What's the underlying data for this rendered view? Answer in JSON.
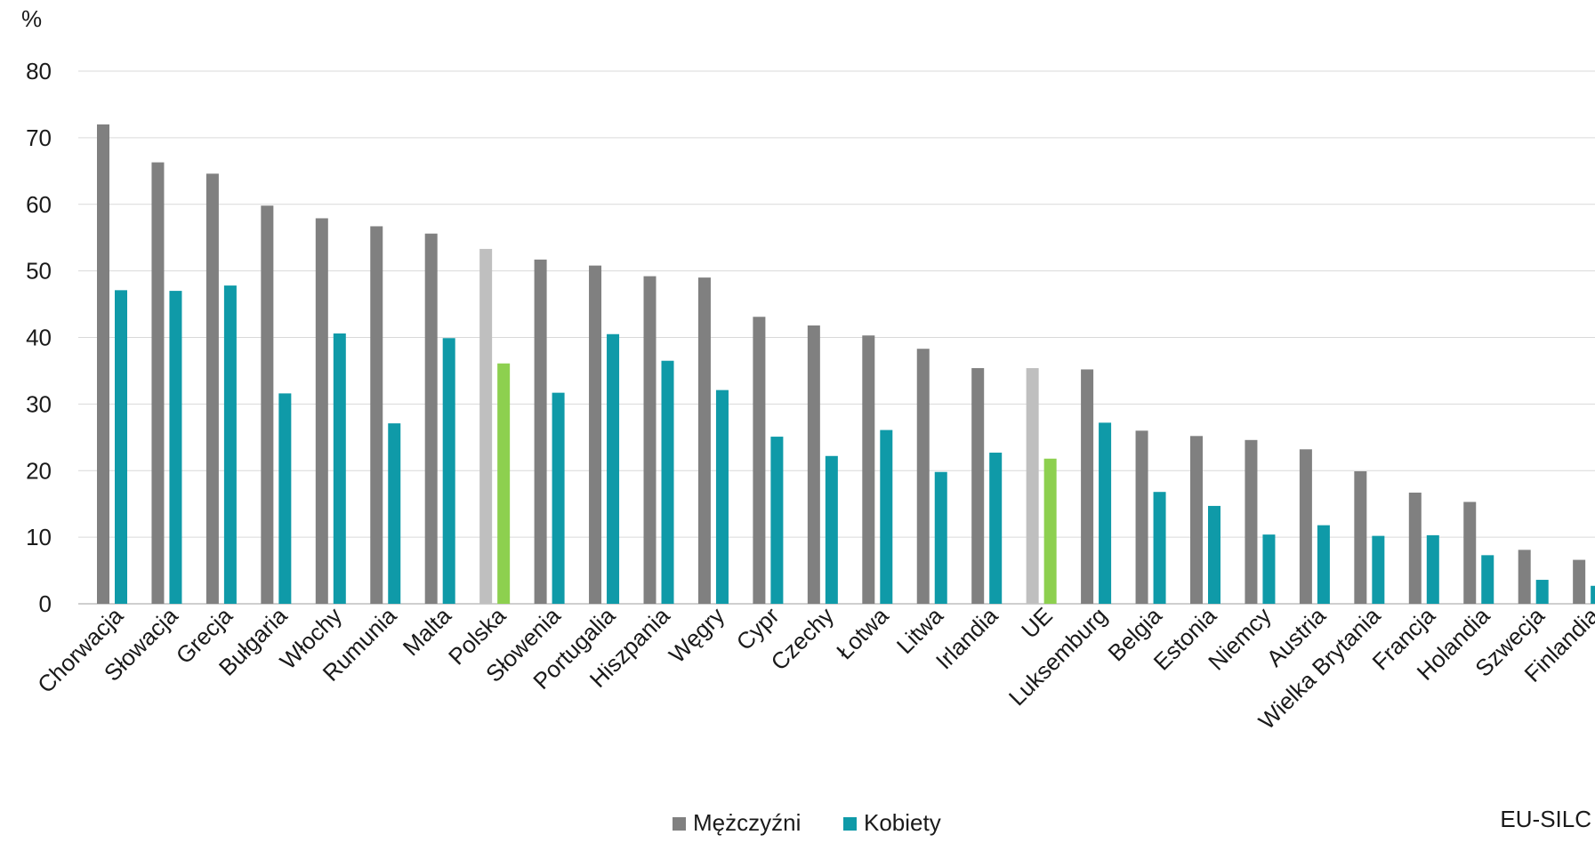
{
  "chart_data": {
    "type": "bar",
    "ylabel": "%",
    "ylim": [
      0,
      80
    ],
    "yticks": [
      0,
      10,
      20,
      30,
      40,
      50,
      60,
      70,
      80
    ],
    "grid": true,
    "legend_position": "bottom",
    "categories": [
      "Chorwacja",
      "Słowacja",
      "Grecja",
      "Bułgaria",
      "Włochy",
      "Rumunia",
      "Malta",
      "Polska",
      "Słowenia",
      "Portugalia",
      "Hiszpania",
      "Węgry",
      "Cypr",
      "Czechy",
      "Łotwa",
      "Litwa",
      "Irlandia",
      "UE",
      "Luksemburg",
      "Belgia",
      "Estonia",
      "Niemcy",
      "Austria",
      "Wielka Brytania",
      "Francja",
      "Holandia",
      "Szwecja",
      "Finlandia"
    ],
    "series": [
      {
        "name": "Mężczyźni",
        "color": "#808080",
        "highlight_color": "#bfbfbf",
        "values": [
          72.0,
          66.3,
          64.6,
          59.8,
          57.9,
          56.7,
          55.6,
          53.3,
          51.7,
          50.8,
          49.2,
          49.0,
          43.1,
          41.8,
          40.3,
          38.3,
          35.4,
          35.4,
          35.2,
          26.0,
          25.2,
          24.6,
          23.2,
          19.9,
          16.7,
          15.3,
          8.1,
          6.6
        ]
      },
      {
        "name": "Kobiety",
        "color": "#0f9aa8",
        "highlight_color": "#8dd04f",
        "values": [
          47.1,
          47.0,
          47.8,
          31.6,
          40.6,
          27.1,
          39.9,
          36.1,
          31.7,
          40.5,
          36.5,
          32.1,
          25.1,
          22.2,
          26.1,
          19.8,
          22.7,
          21.8,
          27.2,
          16.8,
          14.7,
          10.4,
          11.8,
          10.2,
          10.3,
          7.3,
          3.6,
          2.7
        ]
      }
    ],
    "highlighted_categories": [
      "Polska",
      "UE"
    ],
    "source": "EU-SILC"
  }
}
